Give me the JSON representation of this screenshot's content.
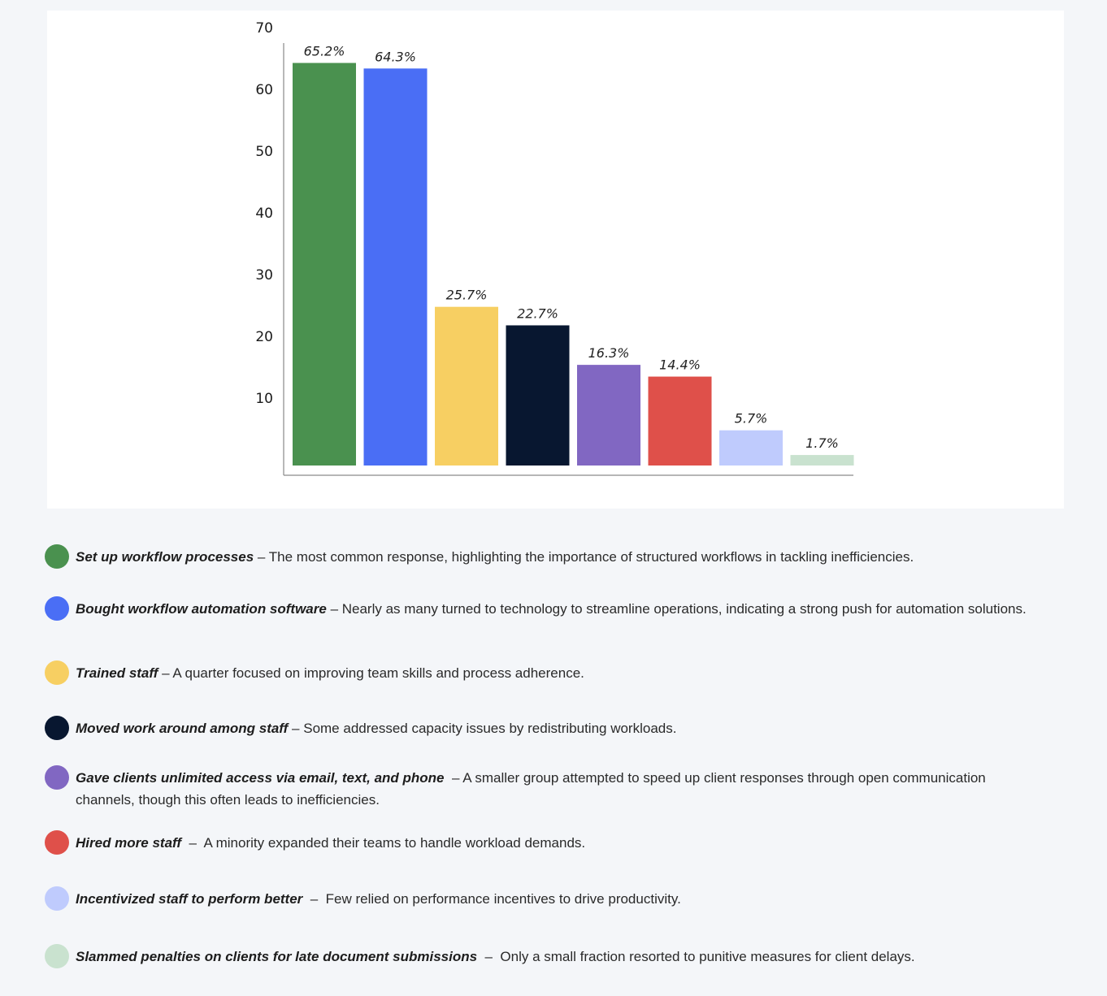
{
  "chart_data": {
    "type": "bar",
    "categories": [
      "Set up workflow processes",
      "Bought workflow automation software",
      "Trained staff",
      "Moved work around among staff",
      "Gave clients unlimited access via email, text, and phone",
      "Hired more staff",
      "Incentivized staff to perform better",
      "Slammed penalties on clients for late document submissions"
    ],
    "values": [
      65.2,
      64.3,
      25.7,
      22.7,
      16.3,
      14.4,
      5.7,
      1.7
    ],
    "value_labels": [
      "65.2%",
      "64.3%",
      "25.7%",
      "22.7%",
      "16.3%",
      "14.4%",
      "5.7%",
      "1.7%"
    ],
    "colors": [
      "#4a914f",
      "#4a6ef5",
      "#f7cf62",
      "#081730",
      "#8167c2",
      "#df504a",
      "#bfcbfd",
      "#c9e2cf"
    ],
    "yticks": [
      "10",
      "20",
      "30",
      "40",
      "50",
      "60",
      "70"
    ],
    "ylim": [
      0,
      70
    ],
    "title": "",
    "xlabel": "",
    "ylabel": "",
    "grid": false,
    "legend_placement": "below"
  },
  "legend": [
    {
      "bold": "Set up workflow processes",
      "text": " – The most common response, highlighting the importance of structured workflows in tackling inefficiencies."
    },
    {
      "bold": "Bought workflow automation software",
      "text": " – Nearly as many turned to technology to streamline operations, indicating a strong push for automation solutions."
    },
    {
      "bold": "Trained staff",
      "text": " – A quarter focused on improving team skills and process adherence."
    },
    {
      "bold": "Moved work around among staff",
      "text": " – Some addressed capacity issues by redistributing workloads."
    },
    {
      "bold": "Gave clients unlimited access via email, text, and phone",
      "text": "  – A smaller group attempted to speed up client responses through open communication channels, though this often leads to inefficiencies."
    },
    {
      "bold": "Hired more staff",
      "text": "  –  A minority expanded their teams to handle workload demands."
    },
    {
      "bold": "Incentivized staff to perform better",
      "text": "  –  Few relied on performance incentives to drive productivity."
    },
    {
      "bold": "Slammed penalties on clients for late document submissions",
      "text": "  –  Only a small fraction resorted to punitive measures for client delays."
    }
  ]
}
